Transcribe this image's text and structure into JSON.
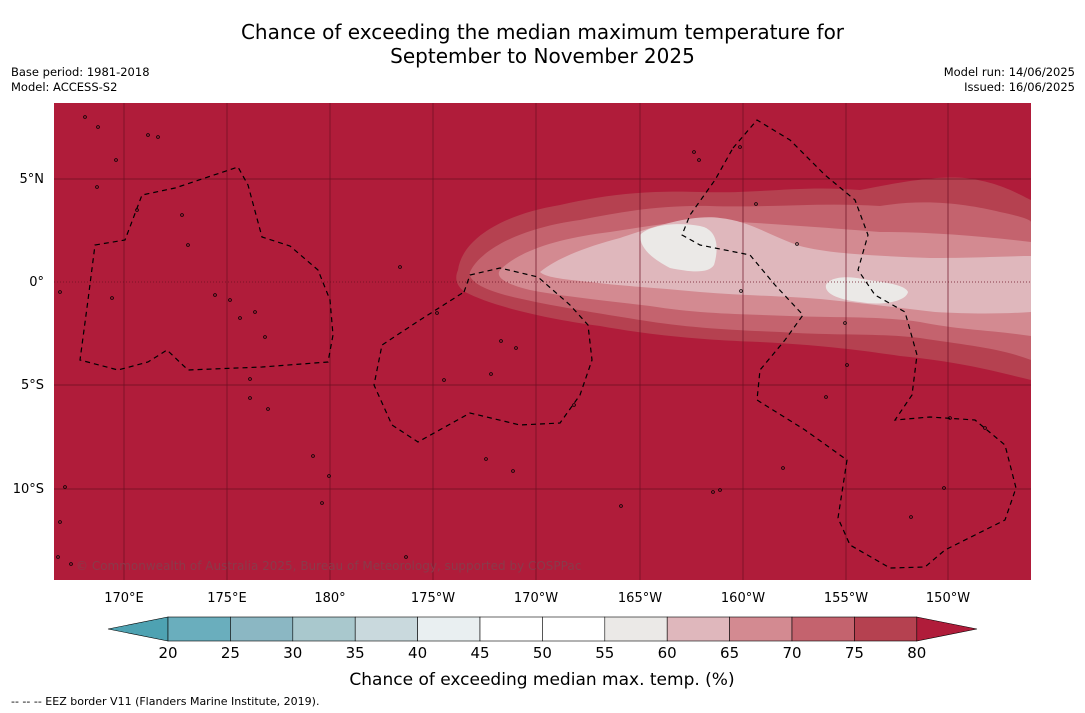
{
  "title_line1": "Chance of exceeding the median maximum temperature for",
  "title_line2": "September to November 2025",
  "base_period": "Base period: 1981-2018",
  "model": "Model: ACCESS-S2",
  "model_run": "Model run: 14/06/2025",
  "issued": "Issued: 16/06/2025",
  "copyright": "© Commonwealth of Australia 2025, Bureau of Meteorology, supported by COSPPac",
  "lon_labels": [
    "170°E",
    "175°E",
    "180°",
    "175°W",
    "170°W",
    "165°W",
    "160°W",
    "155°W",
    "150°W"
  ],
  "lat_labels": [
    "5°N",
    "0°",
    "5°S",
    "10°S"
  ],
  "colorbar": {
    "title": "Chance of exceeding median max. temp. (%)",
    "ticks": [
      "20",
      "25",
      "30",
      "35",
      "40",
      "45",
      "50",
      "55",
      "60",
      "65",
      "70",
      "75",
      "80"
    ],
    "colors": [
      "#6aaebd",
      "#8bb7c3",
      "#a9c8cd",
      "#c9d9dd",
      "#e9eff1",
      "#ffffff",
      "#ffffff",
      "#ebe9e7",
      "#dfb7bc",
      "#d38a91",
      "#c4636e",
      "#b54150"
    ],
    "low_color": "#4ea2b2",
    "high_color": "#b01c3a"
  },
  "map_colors": {
    "background": "#b01c3a",
    "band_75": "#b54150",
    "band_70": "#c4636e",
    "band_65": "#d38a91",
    "band_60": "#dfb7bc",
    "band_55": "#ebe9e7"
  },
  "legend_footnote": "--  --  -- EEZ border V11 (Flanders Marine Institute, 2019)."
}
